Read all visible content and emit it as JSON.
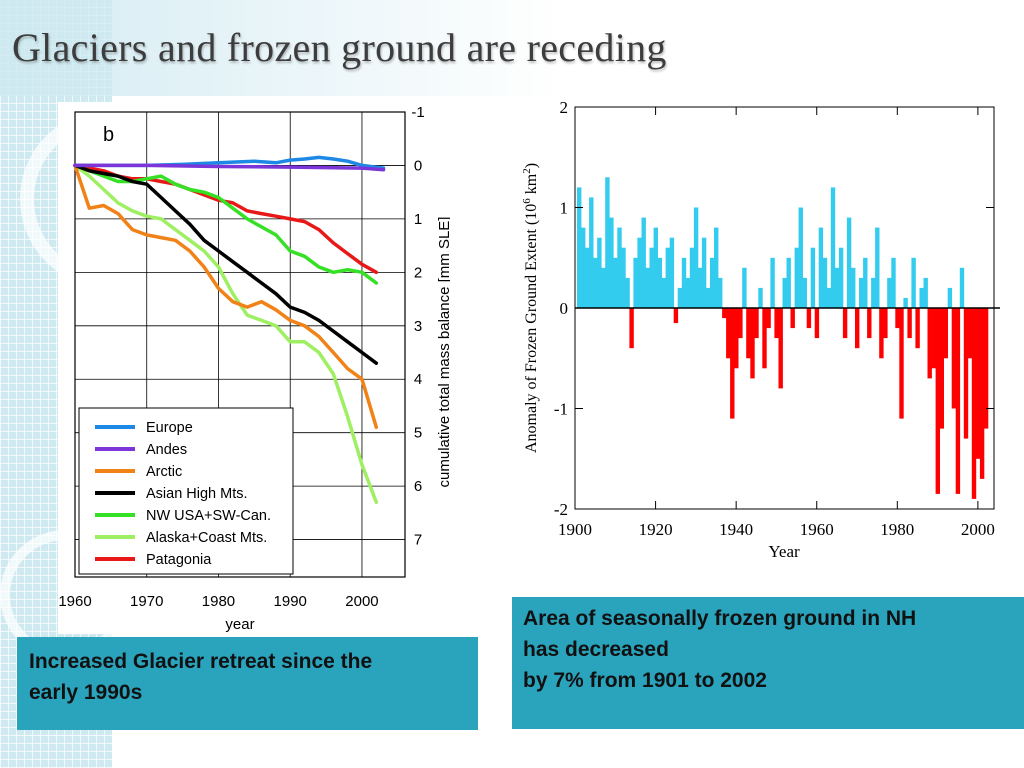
{
  "slide": {
    "title": "Glaciers and frozen ground are receding",
    "left_box": [
      "Increased Glacier retreat since the",
      "early 1990s"
    ],
    "right_box": [
      "Area of seasonally frozen ground in NH",
      "has decreased",
      "by 7% from 1901 to 2002"
    ]
  },
  "colors": {
    "box": "#2aa3bd",
    "positive": "#33ccee",
    "negative": "#ff0000"
  },
  "chart_data": [
    {
      "type": "line",
      "panel_label": "b",
      "xlabel": "year",
      "ylabel": "cumulative total mass balance [mm SLE]",
      "xlim": [
        1960,
        2006
      ],
      "ylim": [
        -1,
        7.7
      ],
      "y_inverted": true,
      "x_ticks": [
        1960,
        1970,
        1980,
        1990,
        2000
      ],
      "y_ticks": [
        -1,
        0,
        1,
        2,
        3,
        4,
        5,
        6,
        7
      ],
      "legend_position": "bottom-left",
      "series": [
        {
          "name": "Europe",
          "color": "#1e88e5",
          "x": [
            1960,
            1965,
            1970,
            1975,
            1980,
            1985,
            1988,
            1990,
            1992,
            1994,
            1996,
            1998,
            2000,
            2003
          ],
          "y": [
            0,
            0,
            0,
            -0.02,
            -0.05,
            -0.08,
            -0.05,
            -0.1,
            -0.12,
            -0.15,
            -0.12,
            -0.08,
            0,
            0.05
          ]
        },
        {
          "name": "Andes",
          "color": "#7b35d9",
          "x": [
            1960,
            1970,
            1980,
            1990,
            2000,
            2003
          ],
          "y": [
            0,
            0,
            0.02,
            0.03,
            0.05,
            0.08
          ]
        },
        {
          "name": "Arctic",
          "color": "#f08218",
          "x": [
            1960,
            1962,
            1964,
            1966,
            1968,
            1970,
            1972,
            1974,
            1976,
            1978,
            1980,
            1982,
            1984,
            1986,
            1988,
            1990,
            1992,
            1994,
            1996,
            1998,
            2000,
            2002
          ],
          "y": [
            0,
            0.8,
            0.75,
            0.9,
            1.2,
            1.3,
            1.35,
            1.4,
            1.6,
            1.9,
            2.3,
            2.55,
            2.65,
            2.55,
            2.7,
            2.9,
            3.0,
            3.2,
            3.5,
            3.8,
            4.0,
            4.9
          ]
        },
        {
          "name": "Asian High Mts.",
          "color": "#000000",
          "x": [
            1960,
            1962,
            1964,
            1966,
            1968,
            1970,
            1972,
            1974,
            1976,
            1978,
            1980,
            1982,
            1984,
            1986,
            1988,
            1990,
            1992,
            1994,
            1996,
            1998,
            2000,
            2002
          ],
          "y": [
            0,
            0.1,
            0.15,
            0.2,
            0.3,
            0.35,
            0.6,
            0.85,
            1.1,
            1.4,
            1.6,
            1.8,
            2.0,
            2.2,
            2.4,
            2.65,
            2.75,
            2.9,
            3.1,
            3.3,
            3.5,
            3.7
          ]
        },
        {
          "name": "NW USA+SW-Can.",
          "color": "#35e025",
          "x": [
            1960,
            1962,
            1964,
            1966,
            1968,
            1970,
            1972,
            1974,
            1976,
            1978,
            1980,
            1982,
            1984,
            1986,
            1988,
            1990,
            1992,
            1994,
            1996,
            1998,
            2000,
            2002
          ],
          "y": [
            0,
            0.1,
            0.2,
            0.3,
            0.3,
            0.25,
            0.2,
            0.35,
            0.45,
            0.5,
            0.6,
            0.8,
            1.0,
            1.15,
            1.3,
            1.6,
            1.7,
            1.9,
            2.0,
            1.95,
            2.0,
            2.2
          ]
        },
        {
          "name": "Alaska+Coast Mts.",
          "color": "#9eef61",
          "x": [
            1960,
            1962,
            1964,
            1966,
            1968,
            1970,
            1972,
            1974,
            1976,
            1978,
            1980,
            1982,
            1984,
            1986,
            1988,
            1990,
            1992,
            1994,
            1996,
            1998,
            2000,
            2002
          ],
          "y": [
            0,
            0.2,
            0.45,
            0.7,
            0.85,
            0.95,
            1.0,
            1.2,
            1.4,
            1.6,
            1.9,
            2.4,
            2.8,
            2.9,
            3.0,
            3.3,
            3.3,
            3.5,
            3.9,
            4.7,
            5.6,
            6.3
          ]
        },
        {
          "name": "Patagonia",
          "color": "#e81818",
          "x": [
            1960,
            1962,
            1964,
            1966,
            1968,
            1970,
            1972,
            1974,
            1976,
            1978,
            1980,
            1982,
            1984,
            1986,
            1988,
            1990,
            1992,
            1994,
            1996,
            1998,
            2000,
            2002
          ],
          "y": [
            0,
            0.05,
            0.1,
            0.2,
            0.25,
            0.25,
            0.3,
            0.35,
            0.45,
            0.55,
            0.65,
            0.7,
            0.85,
            0.9,
            0.95,
            1.0,
            1.05,
            1.2,
            1.45,
            1.65,
            1.85,
            2.0
          ]
        }
      ]
    },
    {
      "type": "area",
      "xlabel": "Year",
      "ylabel": "Anomaly of Frozen Ground Extent (10^6 km^2)",
      "xlim": [
        1900,
        2004
      ],
      "ylim": [
        -2,
        2
      ],
      "x_ticks": [
        1900,
        1920,
        1940,
        1960,
        1980,
        2000
      ],
      "y_ticks": [
        2,
        1,
        0,
        -1,
        -2
      ],
      "series": [
        {
          "name": "Anomaly",
          "x": [
            1901,
            1902,
            1903,
            1904,
            1905,
            1906,
            1907,
            1908,
            1909,
            1910,
            1911,
            1912,
            1913,
            1914,
            1915,
            1916,
            1917,
            1918,
            1919,
            1920,
            1921,
            1922,
            1923,
            1924,
            1925,
            1926,
            1927,
            1928,
            1929,
            1930,
            1931,
            1932,
            1933,
            1934,
            1935,
            1936,
            1937,
            1938,
            1939,
            1940,
            1941,
            1942,
            1943,
            1944,
            1945,
            1946,
            1947,
            1948,
            1949,
            1950,
            1951,
            1952,
            1953,
            1954,
            1955,
            1956,
            1957,
            1958,
            1959,
            1960,
            1961,
            1962,
            1963,
            1964,
            1965,
            1966,
            1967,
            1968,
            1969,
            1970,
            1971,
            1972,
            1973,
            1974,
            1975,
            1976,
            1977,
            1978,
            1979,
            1980,
            1981,
            1982,
            1983,
            1984,
            1985,
            1986,
            1987,
            1988,
            1989,
            1990,
            1991,
            1992,
            1993,
            1994,
            1995,
            1996,
            1997,
            1998,
            1999,
            2000,
            2001,
            2002
          ],
          "values": [
            1.2,
            0.8,
            0.6,
            1.1,
            0.5,
            0.7,
            0.4,
            1.3,
            0.9,
            0.5,
            0.8,
            0.6,
            0.3,
            -0.4,
            0.5,
            0.7,
            0.9,
            0.4,
            0.6,
            0.8,
            0.5,
            0.3,
            0.6,
            0.7,
            -0.15,
            0.2,
            0.5,
            0.3,
            0.6,
            1.0,
            0.4,
            0.7,
            0.2,
            0.5,
            0.8,
            0.3,
            -0.1,
            -0.5,
            -1.1,
            -0.6,
            -0.3,
            0.4,
            -0.5,
            -0.7,
            -0.3,
            0.2,
            -0.6,
            -0.2,
            0.5,
            -0.3,
            -0.8,
            0.3,
            0.5,
            -0.2,
            0.6,
            1.0,
            0.3,
            -0.2,
            0.6,
            -0.3,
            0.8,
            0.5,
            0.2,
            1.2,
            0.4,
            0.6,
            -0.3,
            0.9,
            0.4,
            -0.4,
            0.3,
            0.5,
            -0.3,
            0.3,
            0.8,
            -0.5,
            -0.3,
            0.3,
            0.5,
            -0.2,
            -1.1,
            0.1,
            -0.3,
            0.5,
            -0.4,
            0.2,
            0.3,
            -0.7,
            -0.6,
            -1.85,
            -1.2,
            -0.5,
            0.2,
            -1.0,
            -1.85,
            0.4,
            -1.3,
            -0.5,
            -1.9,
            -1.5,
            -1.7,
            -1.2
          ]
        }
      ]
    }
  ]
}
